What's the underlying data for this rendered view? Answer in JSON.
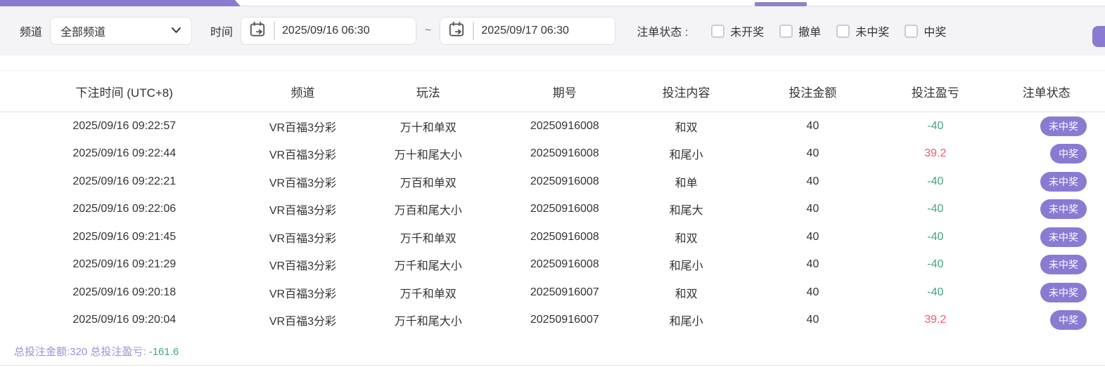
{
  "colors": {
    "accent": "#8a7ad2",
    "neg": "#43a47f",
    "pos": "#e85b6f",
    "summary": "#9c8dd6"
  },
  "filters": {
    "channel_label": "频道",
    "channel_value": "全部频道",
    "time_label": "时间",
    "time_from": "2025/09/16 06:30",
    "time_to": "2025/09/17 06:30",
    "time_separator": "~",
    "status_label": "注单状态 :",
    "status_options": [
      {
        "label": "未开奖",
        "checked": false
      },
      {
        "label": "撤单",
        "checked": false
      },
      {
        "label": "未中奖",
        "checked": false
      },
      {
        "label": "中奖",
        "checked": false
      }
    ]
  },
  "table": {
    "columns": [
      "下注时间 (UTC+8)",
      "频道",
      "玩法",
      "期号",
      "投注内容",
      "投注金额",
      "投注盈亏",
      "注单状态"
    ],
    "rows": [
      {
        "time": "2025/09/16 09:22:57",
        "channel": "VR百福3分彩",
        "play": "万十和单双",
        "period": "20250916008",
        "content": "和双",
        "amount": "40",
        "profit": "-40",
        "status": "未中奖"
      },
      {
        "time": "2025/09/16 09:22:44",
        "channel": "VR百福3分彩",
        "play": "万十和尾大小",
        "period": "20250916008",
        "content": "和尾小",
        "amount": "40",
        "profit": "39.2",
        "status": "中奖"
      },
      {
        "time": "2025/09/16 09:22:21",
        "channel": "VR百福3分彩",
        "play": "万百和单双",
        "period": "20250916008",
        "content": "和单",
        "amount": "40",
        "profit": "-40",
        "status": "未中奖"
      },
      {
        "time": "2025/09/16 09:22:06",
        "channel": "VR百福3分彩",
        "play": "万百和尾大小",
        "period": "20250916008",
        "content": "和尾大",
        "amount": "40",
        "profit": "-40",
        "status": "未中奖"
      },
      {
        "time": "2025/09/16 09:21:45",
        "channel": "VR百福3分彩",
        "play": "万千和单双",
        "period": "20250916008",
        "content": "和双",
        "amount": "40",
        "profit": "-40",
        "status": "未中奖"
      },
      {
        "time": "2025/09/16 09:21:29",
        "channel": "VR百福3分彩",
        "play": "万千和尾大小",
        "period": "20250916008",
        "content": "和尾小",
        "amount": "40",
        "profit": "-40",
        "status": "未中奖"
      },
      {
        "time": "2025/09/16 09:20:18",
        "channel": "VR百福3分彩",
        "play": "万千和单双",
        "period": "20250916007",
        "content": "和双",
        "amount": "40",
        "profit": "-40",
        "status": "未中奖"
      },
      {
        "time": "2025/09/16 09:20:04",
        "channel": "VR百福3分彩",
        "play": "万千和尾大小",
        "period": "20250916007",
        "content": "和尾小",
        "amount": "40",
        "profit": "39.2",
        "status": "中奖"
      }
    ]
  },
  "summary": {
    "total_amount_label": "总投注金额:",
    "total_amount": "320",
    "total_profit_label": "总投注盈亏:",
    "total_profit": "-161.6"
  }
}
